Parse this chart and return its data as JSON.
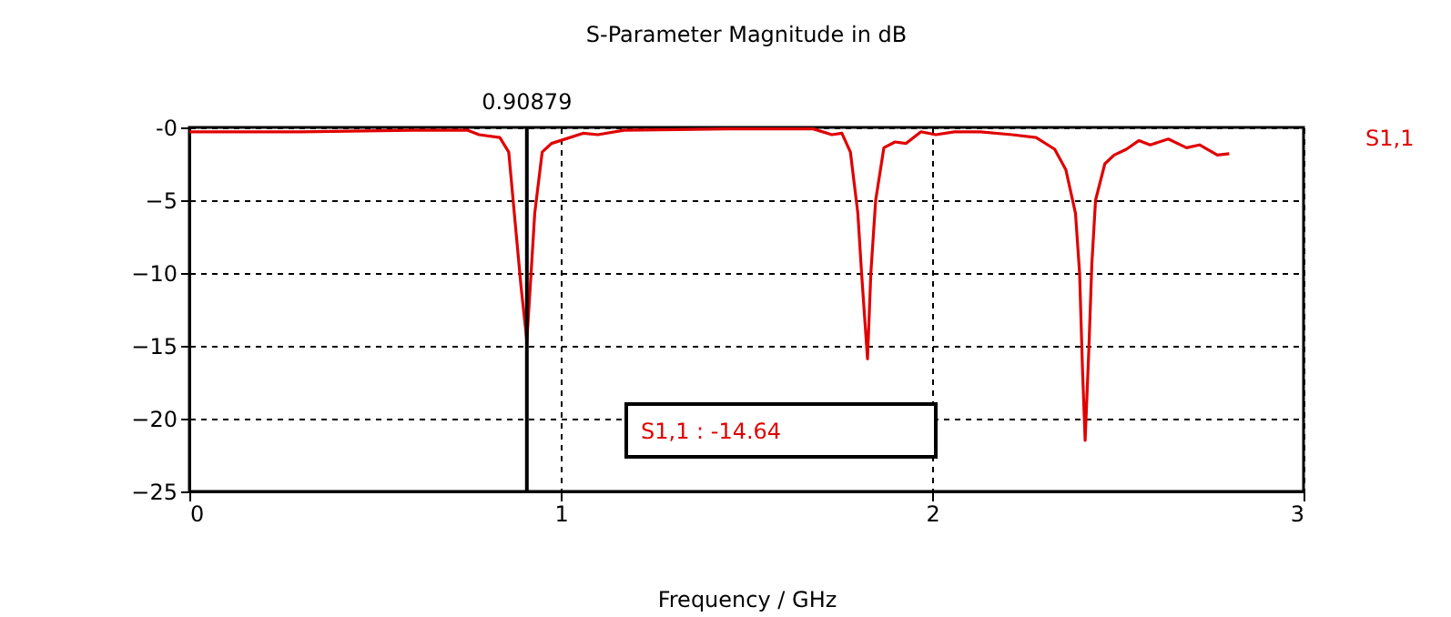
{
  "chart_data": {
    "type": "line",
    "title": "S-Parameter Magnitude in dB",
    "xlabel": "Frequency / GHz",
    "xlim": [
      0,
      3
    ],
    "xticks": [
      0,
      1,
      2,
      3
    ],
    "ylim": [
      -25,
      0
    ],
    "yticks": [
      {
        "value": 0,
        "label": "-0"
      },
      -5,
      -10,
      -15,
      -20,
      -25
    ],
    "grid": true,
    "legend": "right",
    "marker": "none",
    "line_style": "solid",
    "ref_lines": [
      {
        "axis": "x",
        "value": 0.90879,
        "label": "0.90879",
        "color": "#000000"
      }
    ],
    "annotations": [
      "S1,1 : -14.64"
    ],
    "series": [
      {
        "name": "S1,1",
        "color": "#e00000",
        "x": [
          0,
          0.3,
          0.6,
          0.75,
          0.78,
          0.836,
          0.86,
          0.875,
          0.893,
          0.90879,
          0.918,
          0.93,
          0.95,
          0.975,
          1.0,
          1.06,
          1.1,
          1.17,
          1.45,
          1.68,
          1.73,
          1.757,
          1.78,
          1.8,
          1.81,
          1.826,
          1.835,
          1.848,
          1.87,
          1.9,
          1.93,
          1.97,
          2.01,
          2.06,
          2.13,
          2.215,
          2.28,
          2.33,
          2.36,
          2.386,
          2.397,
          2.405,
          2.412,
          2.422,
          2.43,
          2.44,
          2.465,
          2.49,
          2.523,
          2.557,
          2.587,
          2.636,
          2.685,
          2.72,
          2.768,
          2.8
        ],
        "values": [
          -0.3,
          -0.3,
          -0.2,
          -0.2,
          -0.5,
          -0.7,
          -1.7,
          -5.9,
          -10.9,
          -14.64,
          -10.9,
          -5.9,
          -1.7,
          -1.1,
          -0.9,
          -0.4,
          -0.5,
          -0.2,
          -0.1,
          -0.1,
          -0.5,
          -0.4,
          -1.7,
          -5.9,
          -10,
          -15.9,
          -10,
          -5,
          -1.4,
          -1.0,
          -1.1,
          -0.3,
          -0.5,
          -0.3,
          -0.3,
          -0.5,
          -0.7,
          -1.5,
          -2.9,
          -5.9,
          -10,
          -16.7,
          -21.5,
          -15.2,
          -9.4,
          -5,
          -2.5,
          -1.9,
          -1.5,
          -0.9,
          -1.2,
          -0.8,
          -1.4,
          -1.2,
          -1.9,
          -1.8
        ]
      }
    ]
  }
}
